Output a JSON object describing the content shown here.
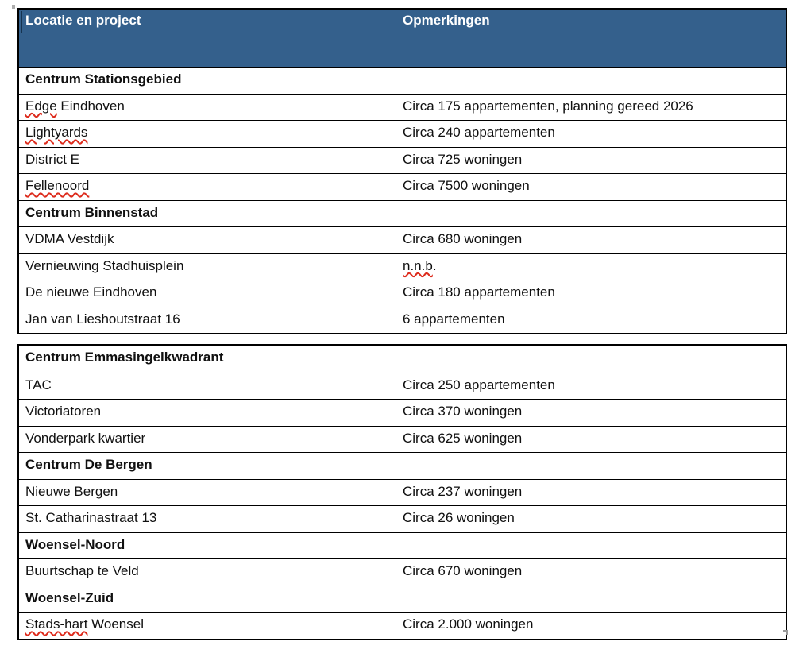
{
  "document": {
    "type": "word-table",
    "background": "#ffffff",
    "header": {
      "col1": "Locatie en project",
      "col2": "Opmerkingen",
      "bg_color": "#34608C",
      "text_color": "#ffffff"
    },
    "border_color": "#000000",
    "spellcheck_underline_color": "#dd2b1c",
    "tables": [
      {
        "rows": [
          {
            "type": "section",
            "label": "Centrum Stationsgebied"
          },
          {
            "type": "item",
            "name": [
              {
                "text": "Edge",
                "misspelled": true
              },
              {
                "text": " Eindhoven",
                "misspelled": false
              }
            ],
            "remark": [
              {
                "text": "Circa 175 appartementen, planning gereed 2026",
                "misspelled": false
              }
            ]
          },
          {
            "type": "item",
            "name": [
              {
                "text": "Lightyards",
                "misspelled": true
              }
            ],
            "remark": [
              {
                "text": "Circa 240 appartementen",
                "misspelled": false
              }
            ]
          },
          {
            "type": "item",
            "name": [
              {
                "text": "District E",
                "misspelled": false
              }
            ],
            "remark": [
              {
                "text": "Circa 725 woningen",
                "misspelled": false
              }
            ]
          },
          {
            "type": "item",
            "name": [
              {
                "text": "Fellenoord",
                "misspelled": true
              }
            ],
            "remark": [
              {
                "text": "Circa 7500 woningen",
                "misspelled": false
              }
            ]
          },
          {
            "type": "section",
            "label": "Centrum Binnenstad"
          },
          {
            "type": "item",
            "name": [
              {
                "text": "VDMA Vestdijk",
                "misspelled": false
              }
            ],
            "remark": [
              {
                "text": "Circa 680 woningen",
                "misspelled": false
              }
            ]
          },
          {
            "type": "item",
            "name": [
              {
                "text": "Vernieuwing Stadhuisplein",
                "misspelled": false
              }
            ],
            "remark": [
              {
                "text": "n.n.b",
                "misspelled": true
              },
              {
                "text": ".",
                "misspelled": false
              }
            ]
          },
          {
            "type": "item",
            "name": [
              {
                "text": "De nieuwe Eindhoven",
                "misspelled": false
              }
            ],
            "remark": [
              {
                "text": "Circa 180 appartementen",
                "misspelled": false
              }
            ]
          },
          {
            "type": "item",
            "name": [
              {
                "text": "Jan van Lieshoutstraat 16",
                "misspelled": false
              }
            ],
            "remark": [
              {
                "text": "6 appartementen",
                "misspelled": false
              }
            ]
          }
        ]
      },
      {
        "rows": [
          {
            "type": "section",
            "label": "Centrum Emmasingelkwadrant"
          },
          {
            "type": "item",
            "name": [
              {
                "text": "TAC",
                "misspelled": false
              }
            ],
            "remark": [
              {
                "text": "Circa 250 appartementen",
                "misspelled": false
              }
            ]
          },
          {
            "type": "item",
            "name": [
              {
                "text": "Victoriatoren",
                "misspelled": false
              }
            ],
            "remark": [
              {
                "text": "Circa 370 woningen",
                "misspelled": false
              }
            ]
          },
          {
            "type": "item",
            "name": [
              {
                "text": "Vonderpark kwartier",
                "misspelled": false
              }
            ],
            "remark": [
              {
                "text": "Circa 625 woningen",
                "misspelled": false
              }
            ]
          },
          {
            "type": "section",
            "label": "Centrum De Bergen"
          },
          {
            "type": "item",
            "name": [
              {
                "text": "Nieuwe Bergen",
                "misspelled": false
              }
            ],
            "remark": [
              {
                "text": "Circa 237 woningen",
                "misspelled": false
              }
            ]
          },
          {
            "type": "item",
            "name": [
              {
                "text": "St. Catharinastraat 13",
                "misspelled": false
              }
            ],
            "remark": [
              {
                "text": "Circa 26 woningen",
                "misspelled": false
              }
            ]
          },
          {
            "type": "section",
            "label": "Woensel-Noord"
          },
          {
            "type": "item",
            "name": [
              {
                "text": "Buurtschap te Veld",
                "misspelled": false
              }
            ],
            "remark": [
              {
                "text": "Circa 670 woningen",
                "misspelled": false
              }
            ]
          },
          {
            "type": "section",
            "label": "Woensel-Zuid"
          },
          {
            "type": "item",
            "name": [
              {
                "text": "Stads-hart",
                "misspelled": true
              },
              {
                "text": " Woensel",
                "misspelled": false
              }
            ],
            "remark": [
              {
                "text": "Circa 2.000 woningen",
                "misspelled": false
              }
            ]
          }
        ]
      }
    ]
  }
}
